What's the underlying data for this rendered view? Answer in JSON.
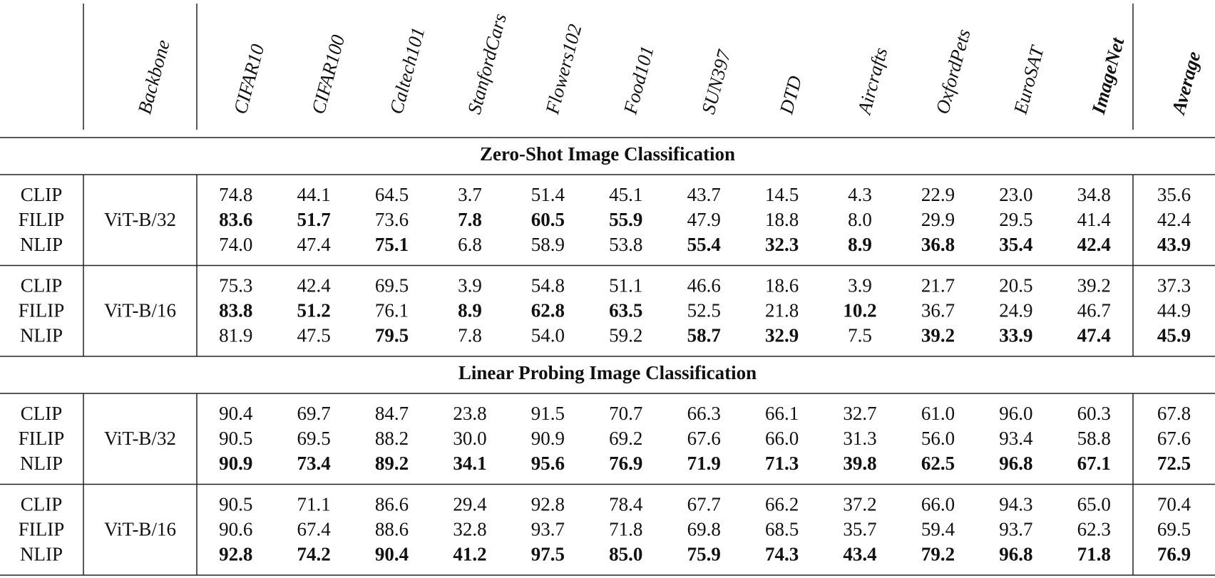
{
  "header": {
    "columns": [
      "Backbone",
      "CIFAR10",
      "CIFAR100",
      "Caltech101",
      "StanfordCars",
      "Flowers102",
      "Food101",
      "SUN397",
      "DTD",
      "Aircrafts",
      "OxfordPets",
      "EuroSAT",
      "ImageNet",
      "Average"
    ],
    "bold": [
      false,
      false,
      false,
      false,
      false,
      false,
      false,
      false,
      false,
      false,
      false,
      false,
      true,
      true
    ]
  },
  "sections": [
    {
      "title": "Zero-Shot Image Classification",
      "groups": [
        {
          "backbone": "ViT-B/32",
          "rows": [
            {
              "method": "CLIP",
              "values": [
                "74.8",
                "44.1",
                "64.5",
                "3.7",
                "51.4",
                "45.1",
                "43.7",
                "14.5",
                "4.3",
                "22.9",
                "23.0",
                "34.8",
                "35.6"
              ],
              "bold": [
                false,
                false,
                false,
                false,
                false,
                false,
                false,
                false,
                false,
                false,
                false,
                false,
                false
              ]
            },
            {
              "method": "FILIP",
              "values": [
                "83.6",
                "51.7",
                "73.6",
                "7.8",
                "60.5",
                "55.9",
                "47.9",
                "18.8",
                "8.0",
                "29.9",
                "29.5",
                "41.4",
                "42.4"
              ],
              "bold": [
                true,
                true,
                false,
                true,
                true,
                true,
                false,
                false,
                false,
                false,
                false,
                false,
                false
              ]
            },
            {
              "method": "NLIP",
              "values": [
                "74.0",
                "47.4",
                "75.1",
                "6.8",
                "58.9",
                "53.8",
                "55.4",
                "32.3",
                "8.9",
                "36.8",
                "35.4",
                "42.4",
                "43.9"
              ],
              "bold": [
                false,
                false,
                true,
                false,
                false,
                false,
                true,
                true,
                true,
                true,
                true,
                true,
                true
              ]
            }
          ]
        },
        {
          "backbone": "ViT-B/16",
          "rows": [
            {
              "method": "CLIP",
              "values": [
                "75.3",
                "42.4",
                "69.5",
                "3.9",
                "54.8",
                "51.1",
                "46.6",
                "18.6",
                "3.9",
                "21.7",
                "20.5",
                "39.2",
                "37.3"
              ],
              "bold": [
                false,
                false,
                false,
                false,
                false,
                false,
                false,
                false,
                false,
                false,
                false,
                false,
                false
              ]
            },
            {
              "method": "FILIP",
              "values": [
                "83.8",
                "51.2",
                "76.1",
                "8.9",
                "62.8",
                "63.5",
                "52.5",
                "21.8",
                "10.2",
                "36.7",
                "24.9",
                "46.7",
                "44.9"
              ],
              "bold": [
                true,
                true,
                false,
                true,
                true,
                true,
                false,
                false,
                true,
                false,
                false,
                false,
                false
              ]
            },
            {
              "method": "NLIP",
              "values": [
                "81.9",
                "47.5",
                "79.5",
                "7.8",
                "54.0",
                "59.2",
                "58.7",
                "32.9",
                "7.5",
                "39.2",
                "33.9",
                "47.4",
                "45.9"
              ],
              "bold": [
                false,
                false,
                true,
                false,
                false,
                false,
                true,
                true,
                false,
                true,
                true,
                true,
                true
              ]
            }
          ]
        }
      ]
    },
    {
      "title": "Linear Probing Image Classification",
      "groups": [
        {
          "backbone": "ViT-B/32",
          "rows": [
            {
              "method": "CLIP",
              "values": [
                "90.4",
                "69.7",
                "84.7",
                "23.8",
                "91.5",
                "70.7",
                "66.3",
                "66.1",
                "32.7",
                "61.0",
                "96.0",
                "60.3",
                "67.8"
              ],
              "bold": [
                false,
                false,
                false,
                false,
                false,
                false,
                false,
                false,
                false,
                false,
                false,
                false,
                false
              ]
            },
            {
              "method": "FILIP",
              "values": [
                "90.5",
                "69.5",
                "88.2",
                "30.0",
                "90.9",
                "69.2",
                "67.6",
                "66.0",
                "31.3",
                "56.0",
                "93.4",
                "58.8",
                "67.6"
              ],
              "bold": [
                false,
                false,
                false,
                false,
                false,
                false,
                false,
                false,
                false,
                false,
                false,
                false,
                false
              ]
            },
            {
              "method": "NLIP",
              "values": [
                "90.9",
                "73.4",
                "89.2",
                "34.1",
                "95.6",
                "76.9",
                "71.9",
                "71.3",
                "39.8",
                "62.5",
                "96.8",
                "67.1",
                "72.5"
              ],
              "bold": [
                true,
                true,
                true,
                true,
                true,
                true,
                true,
                true,
                true,
                true,
                true,
                true,
                true
              ]
            }
          ]
        },
        {
          "backbone": "ViT-B/16",
          "rows": [
            {
              "method": "CLIP",
              "values": [
                "90.5",
                "71.1",
                "86.6",
                "29.4",
                "92.8",
                "78.4",
                "67.7",
                "66.2",
                "37.2",
                "66.0",
                "94.3",
                "65.0",
                "70.4"
              ],
              "bold": [
                false,
                false,
                false,
                false,
                false,
                false,
                false,
                false,
                false,
                false,
                false,
                false,
                false
              ]
            },
            {
              "method": "FILIP",
              "values": [
                "90.6",
                "67.4",
                "88.6",
                "32.8",
                "93.7",
                "71.8",
                "69.8",
                "68.5",
                "35.7",
                "59.4",
                "93.7",
                "62.3",
                "69.5"
              ],
              "bold": [
                false,
                false,
                false,
                false,
                false,
                false,
                false,
                false,
                false,
                false,
                false,
                false,
                false
              ]
            },
            {
              "method": "NLIP",
              "values": [
                "92.8",
                "74.2",
                "90.4",
                "41.2",
                "97.5",
                "85.0",
                "75.9",
                "74.3",
                "43.4",
                "79.2",
                "96.8",
                "71.8",
                "76.9"
              ],
              "bold": [
                true,
                true,
                true,
                true,
                true,
                true,
                true,
                true,
                true,
                true,
                true,
                true,
                true
              ]
            }
          ]
        }
      ]
    }
  ]
}
